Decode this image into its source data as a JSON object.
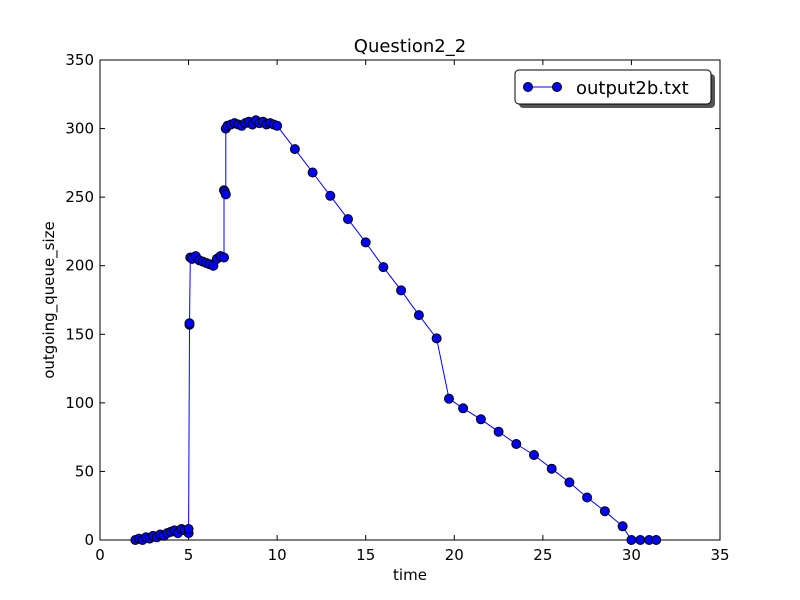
{
  "chart_data": {
    "type": "line",
    "title": "Question2_2",
    "xlabel": "time",
    "ylabel": "outgoing_queue_size",
    "xlim": [
      0,
      35
    ],
    "ylim": [
      0,
      350
    ],
    "xticks": [
      0,
      5,
      10,
      15,
      20,
      25,
      30,
      35
    ],
    "yticks": [
      0,
      50,
      100,
      150,
      200,
      250,
      300,
      350
    ],
    "xtick_labels": [
      "0",
      "5",
      "10",
      "15",
      "20",
      "25",
      "30",
      "35"
    ],
    "ytick_labels": [
      "0",
      "50",
      "100",
      "150",
      "200",
      "250",
      "300",
      "350"
    ],
    "grid": false,
    "legend": {
      "position": "top-right",
      "entries": [
        "output2b.txt"
      ]
    },
    "colors": {
      "line": "#0000ff",
      "marker_edge": "#000000",
      "marker_fill": "#0000ff"
    },
    "series": [
      {
        "name": "output2b.txt",
        "marker": "circle",
        "x": [
          2.0,
          2.2,
          2.4,
          2.6,
          2.8,
          3.0,
          3.2,
          3.4,
          3.6,
          3.8,
          4.0,
          4.2,
          4.4,
          4.6,
          4.8,
          5.0,
          5.0,
          5.05,
          5.05,
          5.1,
          5.2,
          5.4,
          5.6,
          5.8,
          6.0,
          6.2,
          6.4,
          6.6,
          6.8,
          7.0,
          7.0,
          7.05,
          7.1,
          7.1,
          7.2,
          7.4,
          7.6,
          7.8,
          8.0,
          8.2,
          8.4,
          8.6,
          8.8,
          9.0,
          9.2,
          9.4,
          9.6,
          9.8,
          10.0,
          11.0,
          12.0,
          13.0,
          14.0,
          15.0,
          16.0,
          17.0,
          18.0,
          19.0,
          19.7,
          20.5,
          21.5,
          22.5,
          23.5,
          24.5,
          25.5,
          26.5,
          27.5,
          28.5,
          29.5,
          30.0,
          30.5,
          31.0,
          31.4
        ],
        "y": [
          0,
          1,
          0,
          2,
          1,
          3,
          2,
          4,
          3,
          5,
          6,
          7,
          5,
          8,
          7,
          5,
          8,
          157,
          158,
          206,
          205,
          207,
          204,
          203,
          202,
          201,
          200,
          205,
          207,
          206,
          255,
          254,
          252,
          300,
          302,
          303,
          304,
          303,
          302,
          304,
          305,
          303,
          306,
          304,
          305,
          303,
          304,
          303,
          302,
          285,
          268,
          251,
          234,
          217,
          199,
          182,
          164,
          147,
          103,
          96,
          88,
          79,
          70,
          62,
          52,
          42,
          31,
          21,
          10,
          0,
          0,
          0,
          0
        ]
      }
    ]
  }
}
